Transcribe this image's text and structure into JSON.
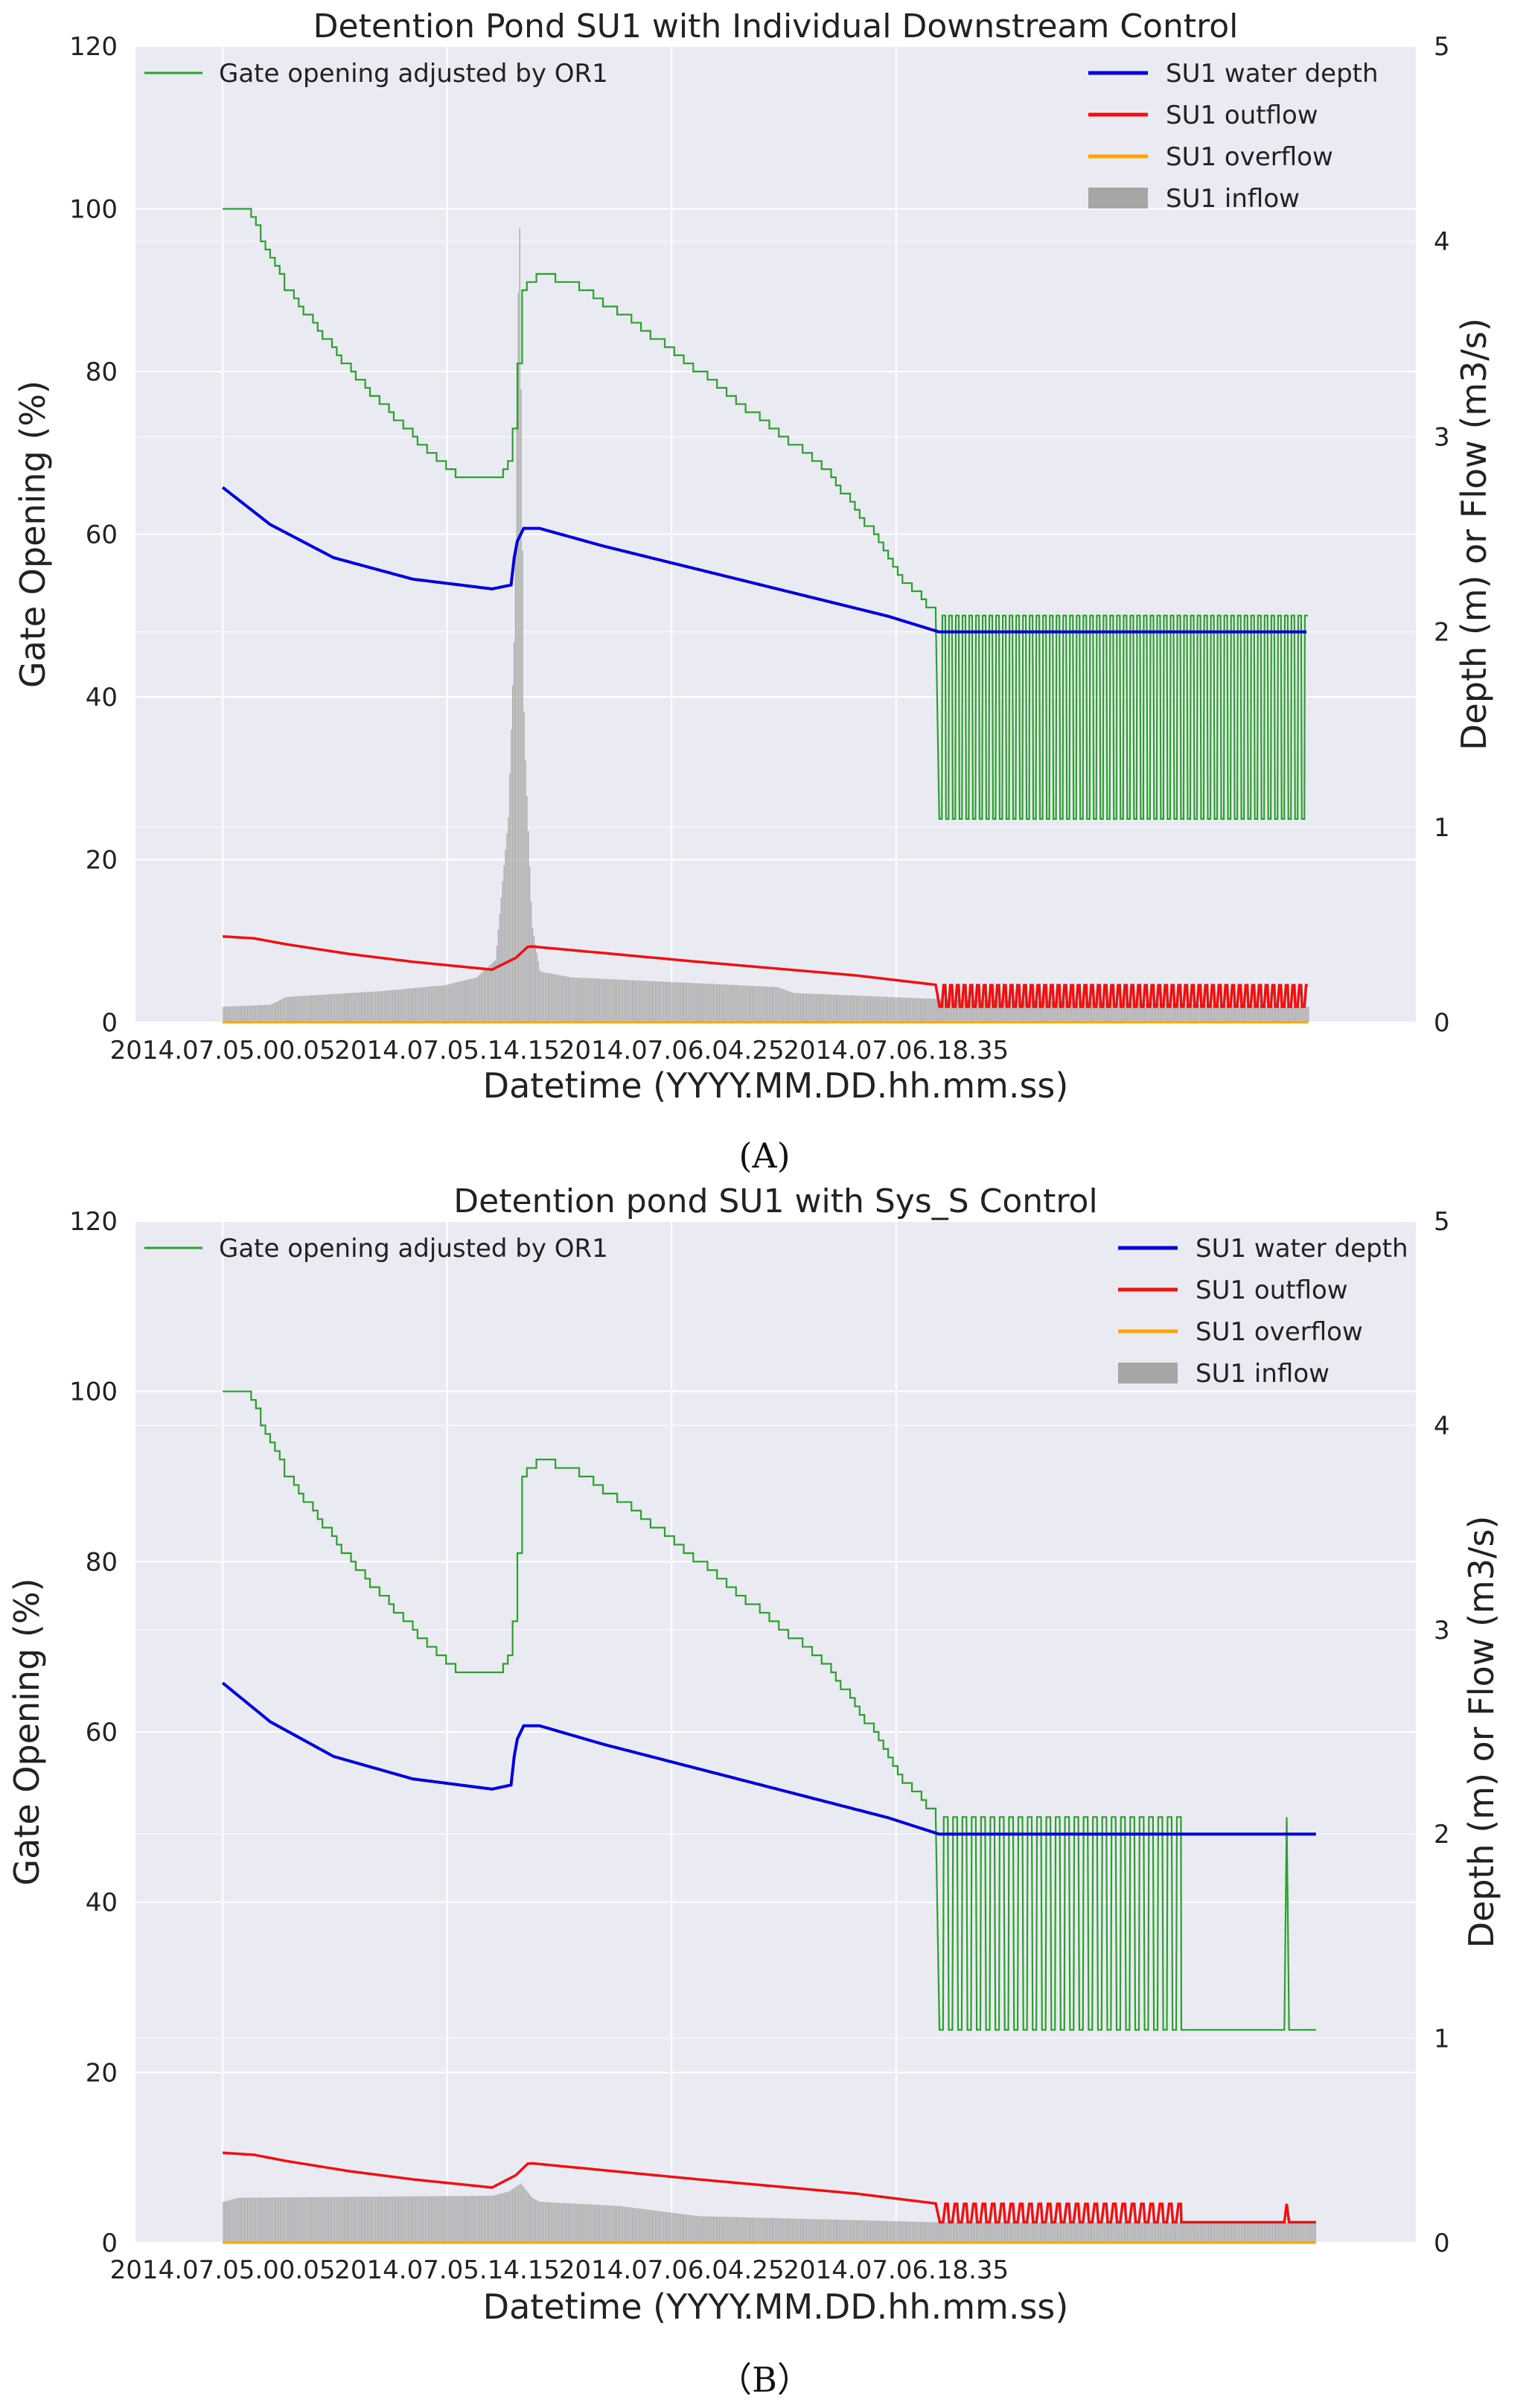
{
  "chart_data": [
    {
      "type": "line",
      "panel_label": "(A)",
      "title": "Detention Pond SU1 with Individual Downstream Control",
      "xlabel": "Datetime (YYYY.MM.DD.hh.mm.ss)",
      "ylabel": "Gate Opening (%)",
      "y2label": "Depth (m) or Flow (m3/s)",
      "ylim": [
        0,
        120
      ],
      "y2lim": [
        0,
        5
      ],
      "yticks": [
        "0",
        "20",
        "40",
        "60",
        "80",
        "100",
        "120"
      ],
      "y2ticks": [
        "0",
        "1",
        "2",
        "3",
        "4",
        "5"
      ],
      "xticks": [
        "2014.07.05.00.05",
        "2014.07.05.14.15",
        "2014.07.06.04.25",
        "2014.07.06.18.35"
      ],
      "x_unit": "hours since 2014.07.05.00.05",
      "xlim": [
        -5.5,
        75.3
      ],
      "grid": true,
      "legend_left": [
        "Gate opening adjusted by OR1"
      ],
      "legend_right": [
        "SU1 water depth",
        "SU1 outflow",
        "SU1 overflow",
        "SU1 inflow"
      ],
      "colors": {
        "gate": "#2ca02c",
        "depth": "#0000dd",
        "outflow": "#ee1111",
        "overflow": "#ffa500",
        "inflow": "#a6a6a6"
      },
      "series": [
        {
          "name": "Gate opening adjusted by OR1",
          "axis": "left",
          "x": [
            0,
            1.5,
            4,
            8,
            12,
            15,
            17.5,
            18.2,
            18.9,
            20,
            22,
            26,
            30,
            34,
            38,
            41,
            43,
            45.2
          ],
          "values": [
            100,
            100,
            90,
            80,
            72,
            67,
            67,
            70,
            90,
            92,
            91,
            86,
            80,
            74,
            68,
            60,
            54,
            50
          ],
          "oscillation": {
            "start": 45.2,
            "end": 68.5,
            "low": 25,
            "high": 50,
            "cycles": 55
          }
        },
        {
          "name": "SU1 water depth",
          "axis": "right",
          "x": [
            0,
            3,
            7,
            12,
            17,
            18.2,
            18.5,
            19,
            20,
            24,
            30,
            36,
            42,
            45.2,
            68.5
          ],
          "values": [
            2.74,
            2.55,
            2.38,
            2.27,
            2.22,
            2.24,
            2.45,
            2.53,
            2.53,
            2.44,
            2.32,
            2.2,
            2.08,
            2.0,
            2.0
          ]
        },
        {
          "name": "SU1 outflow",
          "axis": "right",
          "x": [
            0,
            2,
            4,
            8,
            12,
            17,
            18.5,
            19.3,
            22,
            30,
            40,
            45.2
          ],
          "values": [
            0.44,
            0.43,
            0.4,
            0.35,
            0.31,
            0.27,
            0.33,
            0.39,
            0.37,
            0.31,
            0.24,
            0.19
          ],
          "oscillation": {
            "start": 45.2,
            "end": 68.5,
            "low": 0.08,
            "high": 0.19,
            "cycles": 55
          }
        },
        {
          "name": "SU1 overflow",
          "axis": "right",
          "x": [
            0,
            68.5
          ],
          "values": [
            0,
            0
          ]
        },
        {
          "name": "SU1 inflow",
          "axis": "right",
          "bars": true,
          "x": [
            0,
            3,
            4,
            10,
            14,
            16,
            17.2,
            18,
            18.4,
            18.7,
            19,
            19.5,
            20,
            22,
            30,
            35,
            36,
            45,
            68.5
          ],
          "values": [
            0.08,
            0.09,
            0.13,
            0.16,
            0.19,
            0.23,
            0.32,
            1.05,
            2.05,
            4.25,
            1.5,
            0.5,
            0.26,
            0.23,
            0.2,
            0.18,
            0.15,
            0.12,
            0.08
          ]
        }
      ]
    },
    {
      "type": "line",
      "panel_label": "（B）",
      "title": "Detention pond SU1 with Sys_S Control",
      "xlabel": "Datetime (YYYY.MM.DD.hh.mm.ss)",
      "ylabel": "Gate Opening (%)",
      "y2label": "Depth (m) or Flow (m3/s)",
      "ylim": [
        0,
        120
      ],
      "y2lim": [
        0,
        5
      ],
      "yticks": [
        "0",
        "20",
        "40",
        "60",
        "80",
        "100",
        "120"
      ],
      "y2ticks": [
        "0",
        "1",
        "2",
        "3",
        "4",
        "5"
      ],
      "xticks": [
        "2014.07.05.00.05",
        "2014.07.05.14.15",
        "2014.07.06.04.25",
        "2014.07.06.18.35"
      ],
      "x_unit": "hours since 2014.07.05.00.05",
      "xlim": [
        -5.5,
        75.3
      ],
      "grid": true,
      "legend_left": [
        "Gate opening adjusted by OR1"
      ],
      "legend_right": [
        "SU1 water depth",
        "SU1 outflow",
        "SU1 overflow",
        "SU1 inflow"
      ],
      "colors": {
        "gate": "#2ca02c",
        "depth": "#0000dd",
        "outflow": "#ee1111",
        "overflow": "#ffa500",
        "inflow": "#a6a6a6"
      },
      "series": [
        {
          "name": "Gate opening adjusted by OR1",
          "axis": "left",
          "x": [
            0,
            1.5,
            4,
            8,
            12,
            15,
            17.5,
            18.2,
            18.9,
            20,
            22,
            26,
            30,
            34,
            38,
            41,
            43,
            45.2
          ],
          "values": [
            100,
            100,
            90,
            80,
            72,
            67,
            67,
            70,
            90,
            92,
            91,
            86,
            80,
            74,
            68,
            60,
            54,
            50
          ],
          "oscillation": {
            "start": 45.2,
            "end": 60.5,
            "low": 25,
            "high": 50,
            "cycles": 26
          },
          "tail": {
            "x": [
              60.5,
              67,
              67.15,
              67.3,
              69
            ],
            "values": [
              25,
              25,
              50,
              25,
              25
            ]
          }
        },
        {
          "name": "SU1 water depth",
          "axis": "right",
          "x": [
            0,
            3,
            7,
            12,
            17,
            18.2,
            18.5,
            19,
            20,
            24,
            30,
            36,
            42,
            45.2,
            69
          ],
          "values": [
            2.74,
            2.55,
            2.38,
            2.27,
            2.22,
            2.24,
            2.45,
            2.53,
            2.53,
            2.44,
            2.32,
            2.2,
            2.08,
            2.0,
            2.0
          ]
        },
        {
          "name": "SU1 outflow",
          "axis": "right",
          "x": [
            0,
            2,
            4,
            8,
            12,
            17,
            18.5,
            19.3,
            22,
            30,
            40,
            45.2
          ],
          "values": [
            0.44,
            0.43,
            0.4,
            0.35,
            0.31,
            0.27,
            0.33,
            0.39,
            0.37,
            0.31,
            0.24,
            0.19
          ],
          "oscillation": {
            "start": 45.2,
            "end": 60.5,
            "low": 0.1,
            "high": 0.19,
            "cycles": 26
          },
          "tail": {
            "x": [
              60.5,
              67,
              67.15,
              67.3,
              69
            ],
            "values": [
              0.1,
              0.1,
              0.19,
              0.1,
              0.1
            ]
          }
        },
        {
          "name": "SU1 overflow",
          "axis": "right",
          "x": [
            0,
            69
          ],
          "values": [
            0,
            0
          ]
        },
        {
          "name": "SU1 inflow",
          "axis": "right",
          "bars": true,
          "x": [
            0,
            1,
            17,
            18,
            18.8,
            19.5,
            20,
            25,
            30,
            45.2,
            69
          ],
          "values": [
            0.2,
            0.22,
            0.23,
            0.25,
            0.29,
            0.22,
            0.2,
            0.18,
            0.13,
            0.1,
            0.1
          ]
        }
      ]
    }
  ]
}
